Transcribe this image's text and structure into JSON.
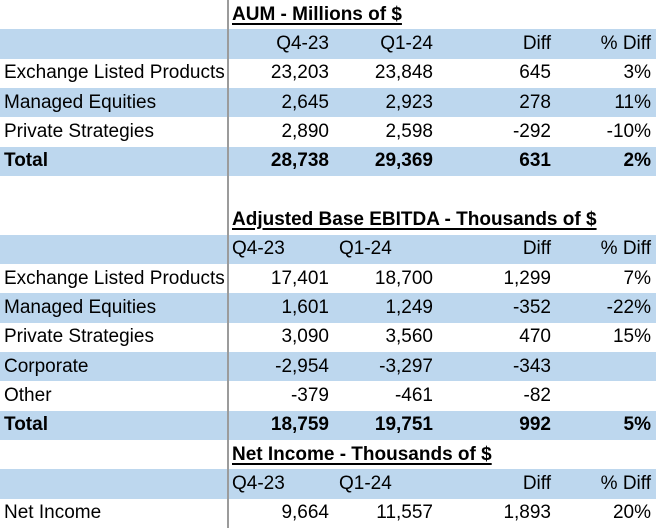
{
  "colors": {
    "band": "#BDD7EE",
    "gridline": "#9B9B9B",
    "text": "#000000",
    "background": "#FFFFFF"
  },
  "aum": {
    "title": "AUM - Millions of $",
    "headers": [
      "Q4-23",
      "Q1-24",
      "Diff",
      "% Diff"
    ],
    "rows": [
      {
        "label": "Exchange Listed Products",
        "q4_23": "23,203",
        "q1_24": "23,848",
        "diff": "645",
        "pct_diff": "3%"
      },
      {
        "label": "Managed Equities",
        "q4_23": "2,645",
        "q1_24": "2,923",
        "diff": "278",
        "pct_diff": "11%"
      },
      {
        "label": "Private Strategies",
        "q4_23": "2,890",
        "q1_24": "2,598",
        "diff": "-292",
        "pct_diff": "-10%"
      },
      {
        "label": "Total",
        "q4_23": "28,738",
        "q1_24": "29,369",
        "diff": "631",
        "pct_diff": "2%"
      }
    ]
  },
  "ebitda": {
    "title": "Adjusted Base EBITDA - Thousands of $",
    "headers": [
      "Q4-23",
      "Q1-24",
      "Diff",
      "% Diff"
    ],
    "rows": [
      {
        "label": "Exchange Listed Products",
        "q4_23": "17,401",
        "q1_24": "18,700",
        "diff": "1,299",
        "pct_diff": "7%"
      },
      {
        "label": "Managed Equities",
        "q4_23": "1,601",
        "q1_24": "1,249",
        "diff": "-352",
        "pct_diff": "-22%"
      },
      {
        "label": "Private Strategies",
        "q4_23": "3,090",
        "q1_24": "3,560",
        "diff": "470",
        "pct_diff": "15%"
      },
      {
        "label": "Corporate",
        "q4_23": "-2,954",
        "q1_24": "-3,297",
        "diff": "-343",
        "pct_diff": ""
      },
      {
        "label": "Other",
        "q4_23": "-379",
        "q1_24": "-461",
        "diff": "-82",
        "pct_diff": ""
      },
      {
        "label": "Total",
        "q4_23": "18,759",
        "q1_24": "19,751",
        "diff": "992",
        "pct_diff": "5%"
      }
    ]
  },
  "net_income": {
    "title": "Net Income - Thousands of $",
    "headers": [
      "Q4-23",
      "Q1-24",
      "Diff",
      "% Diff"
    ],
    "rows": [
      {
        "label": "Net Income",
        "q4_23": "9,664",
        "q1_24": "11,557",
        "diff": "1,893",
        "pct_diff": "20%"
      }
    ]
  }
}
